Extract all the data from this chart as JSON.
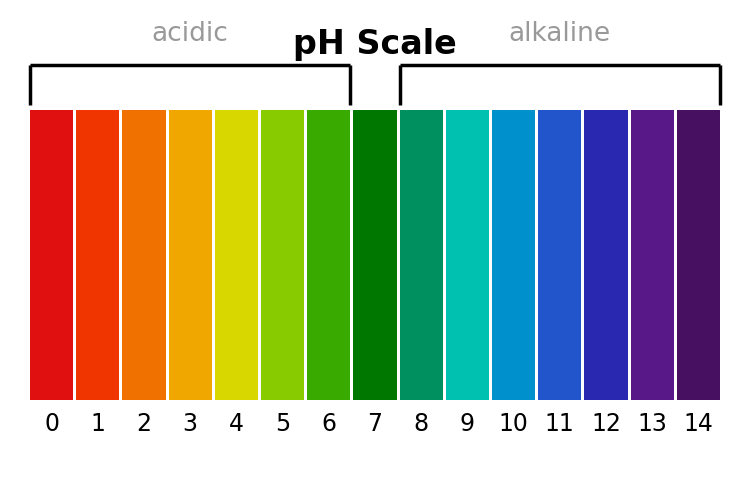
{
  "title": "pH Scale",
  "title_fontsize": 24,
  "title_fontweight": "bold",
  "acidic_label": "acidic",
  "alkaline_label": "alkaline",
  "label_fontsize": 19,
  "label_color": "#999999",
  "ph_values": [
    0,
    1,
    2,
    3,
    4,
    5,
    6,
    7,
    8,
    9,
    10,
    11,
    12,
    13,
    14
  ],
  "ph_colors": [
    "#E01010",
    "#F03500",
    "#F07000",
    "#F0A800",
    "#D8D800",
    "#88CC00",
    "#38AA00",
    "#007800",
    "#009060",
    "#00C0B0",
    "#0090CC",
    "#2255CC",
    "#2828B0",
    "#581888",
    "#481060"
  ],
  "tick_fontsize": 17,
  "background_color": "#ffffff",
  "bar_gap": 3,
  "bracket_lw": 2.5,
  "bracket_color": "#000000"
}
